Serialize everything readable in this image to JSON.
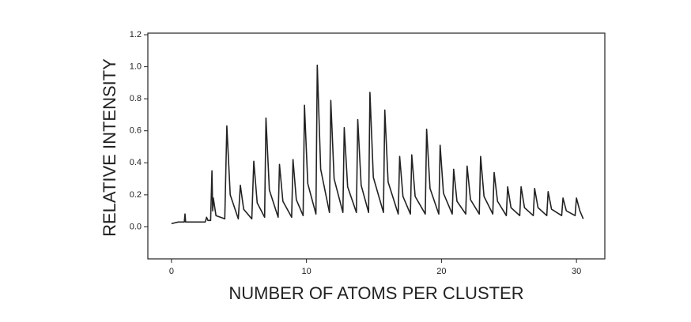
{
  "chart_data": {
    "type": "line",
    "xlabel": "NUMBER OF ATOMS PER CLUSTER",
    "ylabel": "RELATIVE INTENSITY",
    "color": "#222222",
    "xlim": [
      -1.75,
      32.1
    ],
    "ylim": [
      -0.2,
      1.21
    ],
    "xticks": [
      0,
      10,
      20,
      30
    ],
    "yticks": [
      {
        "value": 0,
        "label": "0.0"
      },
      0.2,
      0.4,
      0.6,
      0.8,
      {
        "value": 1,
        "label": "1.0"
      },
      1.2
    ],
    "x": [
      0,
      0.5,
      0.95,
      1.0,
      1.05,
      2.5,
      2.6,
      2.7,
      2.9,
      3.0,
      3.05,
      3.1,
      3.3,
      3.95,
      4.1,
      4.35,
      4.95,
      5.1,
      5.35,
      5.95,
      6.1,
      6.35,
      6.9,
      7.0,
      7.25,
      7.9,
      8.0,
      8.25,
      8.9,
      9.0,
      9.25,
      9.75,
      9.85,
      10.1,
      10.7,
      10.8,
      11.05,
      11.7,
      11.8,
      12.05,
      12.7,
      12.8,
      13.05,
      13.7,
      13.8,
      14.05,
      14.6,
      14.7,
      14.95,
      15.7,
      15.8,
      16.05,
      16.8,
      16.9,
      17.15,
      17.7,
      17.8,
      18.05,
      18.8,
      18.9,
      19.15,
      19.8,
      19.9,
      20.15,
      20.8,
      20.9,
      21.15,
      21.8,
      21.9,
      22.15,
      22.8,
      22.9,
      23.15,
      23.8,
      23.9,
      24.15,
      24.8,
      24.9,
      25.15,
      25.8,
      25.9,
      26.15,
      26.8,
      26.9,
      27.15,
      27.8,
      27.9,
      28.15,
      28.9,
      29.0,
      29.25,
      29.9,
      30.0,
      30.25,
      30.5
    ],
    "values": [
      0.02,
      0.03,
      0.03,
      0.08,
      0.03,
      0.03,
      0.06,
      0.04,
      0.04,
      0.35,
      0.1,
      0.18,
      0.07,
      0.05,
      0.63,
      0.2,
      0.05,
      0.26,
      0.11,
      0.05,
      0.41,
      0.15,
      0.06,
      0.68,
      0.23,
      0.06,
      0.39,
      0.16,
      0.06,
      0.42,
      0.17,
      0.07,
      0.76,
      0.27,
      0.08,
      1.01,
      0.36,
      0.09,
      0.79,
      0.3,
      0.09,
      0.62,
      0.25,
      0.09,
      0.67,
      0.26,
      0.09,
      0.84,
      0.31,
      0.09,
      0.73,
      0.28,
      0.08,
      0.44,
      0.19,
      0.08,
      0.45,
      0.19,
      0.08,
      0.61,
      0.24,
      0.08,
      0.51,
      0.21,
      0.08,
      0.36,
      0.16,
      0.08,
      0.38,
      0.17,
      0.08,
      0.44,
      0.19,
      0.08,
      0.34,
      0.16,
      0.07,
      0.25,
      0.12,
      0.07,
      0.25,
      0.12,
      0.07,
      0.24,
      0.12,
      0.07,
      0.22,
      0.11,
      0.07,
      0.18,
      0.1,
      0.07,
      0.18,
      0.1,
      0.05
    ]
  }
}
